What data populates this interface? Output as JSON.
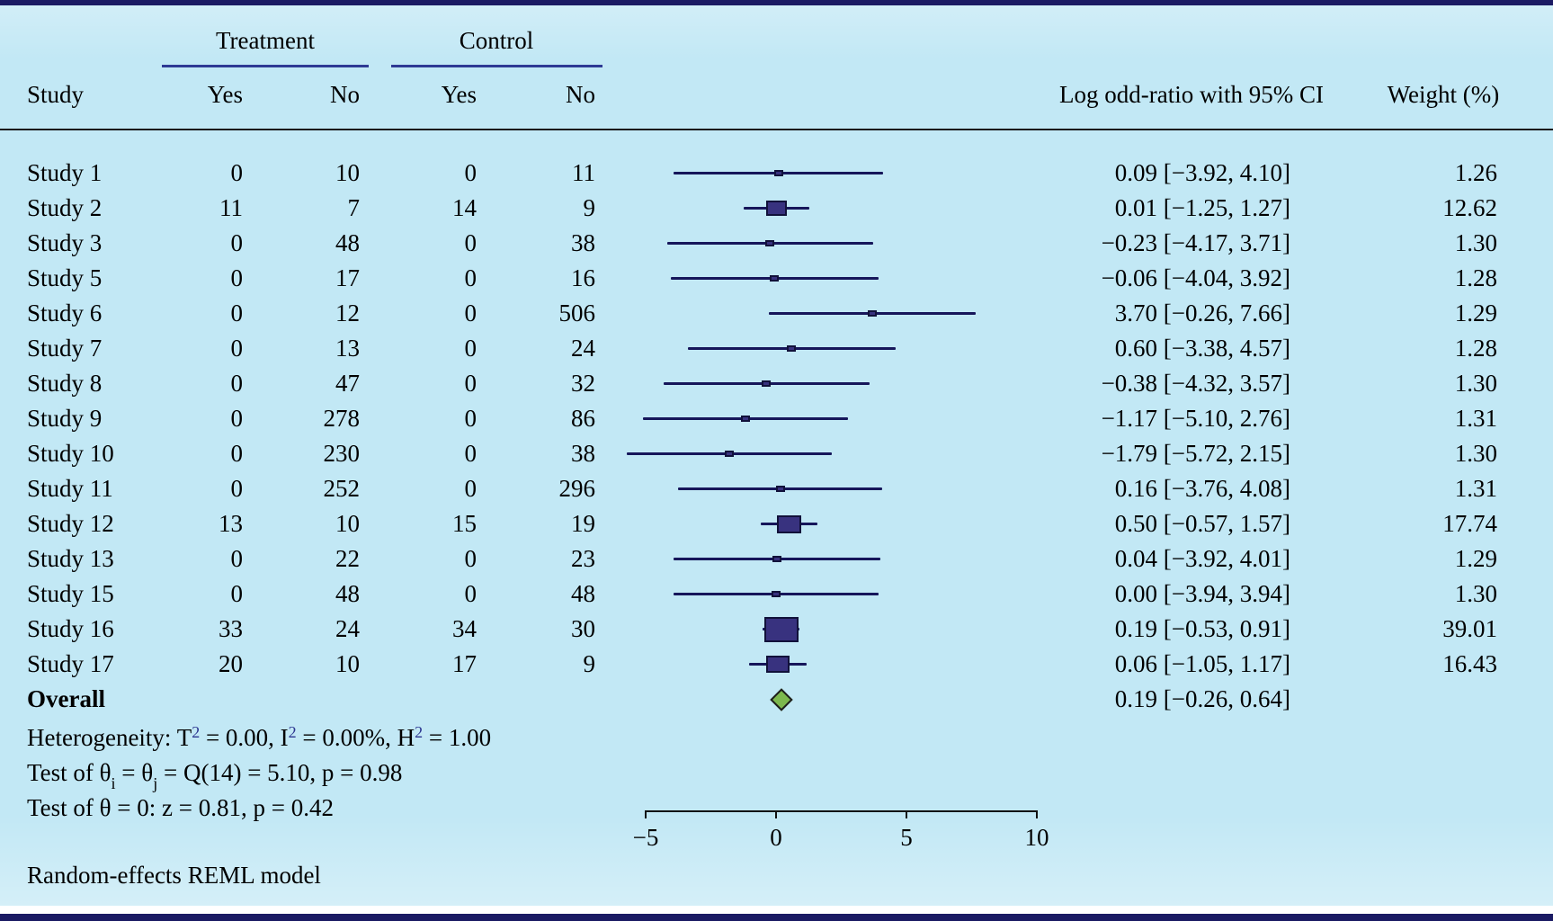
{
  "figure": {
    "background_color": "#c2e8f5",
    "frame_color": "#1a1a63",
    "marker_fill": "#38327f",
    "marker_border": "#11113a",
    "ci_line_color": "#16165a",
    "diamond_fill": "#7cb84e",
    "diamond_border": "#1d1d1d",
    "group_underline_color": "#2e3a94",
    "superscript_color": "#2b3590"
  },
  "header": {
    "study": "Study",
    "treatment_group": "Treatment",
    "control_group": "Control",
    "treatment_yes": "Yes",
    "treatment_no": "No",
    "control_yes": "Yes",
    "control_no": "No",
    "effect": "Log odd-ratio with 95% CI",
    "weight": "Weight (%)"
  },
  "chart_data": {
    "type": "forest",
    "effect_measure": "Log odd-ratio",
    "axis": {
      "min": -5,
      "max": 10,
      "ticks": [
        -5,
        0,
        5,
        10
      ],
      "tick_labels": [
        "−5",
        "0",
        "5",
        "10"
      ]
    },
    "studies": [
      {
        "label": "Study 1",
        "treatment_yes": "0",
        "treatment_no": "10",
        "control_yes": "0",
        "control_no": "11",
        "est": 0.09,
        "lo": -3.92,
        "hi": 4.1,
        "ci_text": "0.09 [−3.92, 4.10]",
        "weight": 1.26,
        "weight_text": "1.26"
      },
      {
        "label": "Study 2",
        "treatment_yes": "11",
        "treatment_no": "7",
        "control_yes": "14",
        "control_no": "9",
        "est": 0.01,
        "lo": -1.25,
        "hi": 1.27,
        "ci_text": "0.01 [−1.25, 1.27]",
        "weight": 12.62,
        "weight_text": "12.62"
      },
      {
        "label": "Study 3",
        "treatment_yes": "0",
        "treatment_no": "48",
        "control_yes": "0",
        "control_no": "38",
        "est": -0.23,
        "lo": -4.17,
        "hi": 3.71,
        "ci_text": "−0.23 [−4.17, 3.71]",
        "weight": 1.3,
        "weight_text": "1.30"
      },
      {
        "label": "Study 5",
        "treatment_yes": "0",
        "treatment_no": "17",
        "control_yes": "0",
        "control_no": "16",
        "est": -0.06,
        "lo": -4.04,
        "hi": 3.92,
        "ci_text": "−0.06 [−4.04, 3.92]",
        "weight": 1.28,
        "weight_text": "1.28"
      },
      {
        "label": "Study 6",
        "treatment_yes": "0",
        "treatment_no": "12",
        "control_yes": "0",
        "control_no": "506",
        "est": 3.7,
        "lo": -0.26,
        "hi": 7.66,
        "ci_text": "3.70 [−0.26, 7.66]",
        "weight": 1.29,
        "weight_text": "1.29"
      },
      {
        "label": "Study 7",
        "treatment_yes": "0",
        "treatment_no": "13",
        "control_yes": "0",
        "control_no": "24",
        "est": 0.6,
        "lo": -3.38,
        "hi": 4.57,
        "ci_text": "0.60 [−3.38, 4.57]",
        "weight": 1.28,
        "weight_text": "1.28"
      },
      {
        "label": "Study 8",
        "treatment_yes": "0",
        "treatment_no": "47",
        "control_yes": "0",
        "control_no": "32",
        "est": -0.38,
        "lo": -4.32,
        "hi": 3.57,
        "ci_text": "−0.38 [−4.32, 3.57]",
        "weight": 1.3,
        "weight_text": "1.30"
      },
      {
        "label": "Study 9",
        "treatment_yes": "0",
        "treatment_no": "278",
        "control_yes": "0",
        "control_no": "86",
        "est": -1.17,
        "lo": -5.1,
        "hi": 2.76,
        "ci_text": "−1.17 [−5.10, 2.76]",
        "weight": 1.31,
        "weight_text": "1.31"
      },
      {
        "label": "Study 10",
        "treatment_yes": "0",
        "treatment_no": "230",
        "control_yes": "0",
        "control_no": "38",
        "est": -1.79,
        "lo": -5.72,
        "hi": 2.15,
        "ci_text": "−1.79 [−5.72, 2.15]",
        "weight": 1.3,
        "weight_text": "1.30"
      },
      {
        "label": "Study 11",
        "treatment_yes": "0",
        "treatment_no": "252",
        "control_yes": "0",
        "control_no": "296",
        "est": 0.16,
        "lo": -3.76,
        "hi": 4.08,
        "ci_text": "0.16 [−3.76, 4.08]",
        "weight": 1.31,
        "weight_text": "1.31"
      },
      {
        "label": "Study 12",
        "treatment_yes": "13",
        "treatment_no": "10",
        "control_yes": "15",
        "control_no": "19",
        "est": 0.5,
        "lo": -0.57,
        "hi": 1.57,
        "ci_text": "0.50 [−0.57, 1.57]",
        "weight": 17.74,
        "weight_text": "17.74"
      },
      {
        "label": "Study 13",
        "treatment_yes": "0",
        "treatment_no": "22",
        "control_yes": "0",
        "control_no": "23",
        "est": 0.04,
        "lo": -3.92,
        "hi": 4.01,
        "ci_text": "0.04 [−3.92, 4.01]",
        "weight": 1.29,
        "weight_text": "1.29"
      },
      {
        "label": "Study 15",
        "treatment_yes": "0",
        "treatment_no": "48",
        "control_yes": "0",
        "control_no": "48",
        "est": 0.0,
        "lo": -3.94,
        "hi": 3.94,
        "ci_text": "0.00 [−3.94, 3.94]",
        "weight": 1.3,
        "weight_text": "1.30"
      },
      {
        "label": "Study 16",
        "treatment_yes": "33",
        "treatment_no": "24",
        "control_yes": "34",
        "control_no": "30",
        "est": 0.19,
        "lo": -0.53,
        "hi": 0.91,
        "ci_text": "0.19 [−0.53, 0.91]",
        "weight": 39.01,
        "weight_text": "39.01"
      },
      {
        "label": "Study 17",
        "treatment_yes": "20",
        "treatment_no": "10",
        "control_yes": "17",
        "control_no": "9",
        "est": 0.06,
        "lo": -1.05,
        "hi": 1.17,
        "ci_text": "0.06 [−1.05, 1.17]",
        "weight": 16.43,
        "weight_text": "16.43"
      }
    ],
    "overall": {
      "label": "Overall",
      "est": 0.19,
      "lo": -0.26,
      "hi": 0.64,
      "ci_text": "0.19 [−0.26, 0.64]"
    },
    "heterogeneity_line": [
      {
        "t": "Heterogeneity: T"
      },
      {
        "sup": "2"
      },
      {
        "t": " = 0.00, I"
      },
      {
        "sup": "2"
      },
      {
        "t": " = 0.00%, H"
      },
      {
        "sup": "2"
      },
      {
        "t": " = 1.00"
      }
    ],
    "test_q_line": [
      {
        "t": "Test of θ"
      },
      {
        "sub": "i"
      },
      {
        "t": " = θ"
      },
      {
        "sub": "j"
      },
      {
        "t": " = Q(14) = 5.10, p = 0.98"
      }
    ],
    "test_z_line": [
      {
        "t": "Test of θ = 0: z = 0.81, p = 0.42"
      }
    ],
    "footer": "Random-effects REML model"
  }
}
